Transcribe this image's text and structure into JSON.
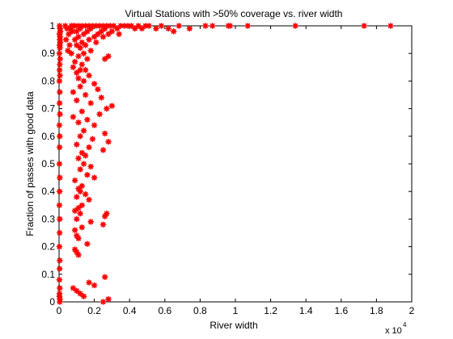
{
  "chart_data": {
    "type": "scatter",
    "title": "Virtual Stations with >50% coverage vs. river width",
    "xlabel": "River width",
    "ylabel": "Fraction of passes with good data",
    "x_multiplier_label": "x 10",
    "x_multiplier_exponent": "4",
    "x_scale": 10000,
    "xlim": [
      0,
      20000
    ],
    "ylim": [
      0,
      1
    ],
    "x_tick_values": [
      0,
      2000,
      4000,
      6000,
      8000,
      10000,
      12000,
      14000,
      16000,
      18000,
      20000
    ],
    "x_tick_labels": [
      "0",
      "0.2",
      "0.4",
      "0.6",
      "0.8",
      "1",
      "1.2",
      "1.4",
      "1.6",
      "1.8",
      "2"
    ],
    "y_tick_values": [
      0,
      0.1,
      0.2,
      0.3,
      0.4,
      0.5,
      0.6,
      0.7,
      0.8,
      0.9,
      1
    ],
    "y_tick_labels": [
      "0",
      "0.1",
      "0.2",
      "0.3",
      "0.4",
      "0.5",
      "0.6",
      "0.7",
      "0.8",
      "0.9",
      "1"
    ],
    "grid": false,
    "marker": "asterisk",
    "marker_color": "#ff0000",
    "series": [
      {
        "points": [
          [
            17300,
            1.0
          ],
          [
            18800,
            1.0
          ],
          [
            13400,
            1.0
          ],
          [
            10700,
            1.0
          ],
          [
            9700,
            1.0
          ],
          [
            9600,
            1.0
          ],
          [
            8700,
            1.0
          ],
          [
            8300,
            1.0
          ],
          [
            7400,
            0.99
          ],
          [
            6800,
            1.0
          ],
          [
            6500,
            0.98
          ],
          [
            6200,
            0.99
          ],
          [
            5800,
            1.0
          ],
          [
            5500,
            0.99
          ],
          [
            5100,
            1.0
          ],
          [
            4900,
            1.0
          ],
          [
            4700,
            0.99
          ],
          [
            4500,
            1.0
          ],
          [
            4300,
            0.99
          ],
          [
            4100,
            1.0
          ],
          [
            3900,
            1.0
          ],
          [
            3700,
            1.0
          ],
          [
            3500,
            1.0
          ],
          [
            3300,
            0.99
          ],
          [
            3100,
            1.0
          ],
          [
            2900,
            1.0
          ],
          [
            2700,
            1.0
          ],
          [
            2500,
            1.0
          ],
          [
            2300,
            1.0
          ],
          [
            2100,
            1.0
          ],
          [
            1900,
            1.0
          ],
          [
            1700,
            1.0
          ],
          [
            1500,
            1.0
          ],
          [
            1300,
            1.0
          ],
          [
            1100,
            1.0
          ],
          [
            900,
            1.0
          ],
          [
            800,
            1.0
          ],
          [
            700,
            1.0
          ],
          [
            650,
            0.99
          ],
          [
            1200,
            0.99
          ],
          [
            1800,
            0.99
          ],
          [
            2600,
            0.99
          ],
          [
            3000,
            0.98
          ],
          [
            2400,
            0.98
          ],
          [
            1600,
            0.98
          ],
          [
            1000,
            0.98
          ],
          [
            3400,
            0.97
          ],
          [
            2800,
            0.97
          ],
          [
            2200,
            0.97
          ],
          [
            1400,
            0.97
          ],
          [
            2000,
            0.96
          ],
          [
            1100,
            0.96
          ],
          [
            2500,
            0.96
          ],
          [
            1700,
            0.95
          ],
          [
            900,
            0.95
          ],
          [
            1300,
            0.94
          ],
          [
            2100,
            0.94
          ],
          [
            1500,
            0.93
          ],
          [
            1000,
            0.93
          ],
          [
            1200,
            0.92
          ],
          [
            1800,
            0.91
          ],
          [
            700,
            0.9
          ],
          [
            1400,
            0.9
          ],
          [
            1100,
            0.89
          ],
          [
            2600,
            0.88
          ],
          [
            2800,
            0.89
          ],
          [
            1600,
            0.88
          ],
          [
            900,
            0.87
          ],
          [
            1300,
            0.86
          ],
          [
            800,
            0.85
          ],
          [
            1200,
            0.84
          ],
          [
            1500,
            0.84
          ],
          [
            1000,
            0.83
          ],
          [
            1700,
            0.82
          ],
          [
            1100,
            0.81
          ],
          [
            1400,
            0.8
          ],
          [
            2000,
            0.79
          ],
          [
            1200,
            0.78
          ],
          [
            2200,
            0.77
          ],
          [
            800,
            0.76
          ],
          [
            1500,
            0.75
          ],
          [
            2400,
            0.74
          ],
          [
            1000,
            0.73
          ],
          [
            1800,
            0.72
          ],
          [
            3000,
            0.71
          ],
          [
            2700,
            0.7
          ],
          [
            1300,
            0.69
          ],
          [
            2300,
            0.68
          ],
          [
            800,
            0.67
          ],
          [
            1600,
            0.66
          ],
          [
            1100,
            0.65
          ],
          [
            2000,
            0.64
          ],
          [
            1400,
            0.62
          ],
          [
            2600,
            0.61
          ],
          [
            1200,
            0.6
          ],
          [
            1900,
            0.59
          ],
          [
            2800,
            0.58
          ],
          [
            1000,
            0.57
          ],
          [
            1700,
            0.56
          ],
          [
            2500,
            0.55
          ],
          [
            1300,
            0.54
          ],
          [
            1500,
            0.53
          ],
          [
            1100,
            0.52
          ],
          [
            1400,
            0.5
          ],
          [
            1800,
            0.49
          ],
          [
            1200,
            0.48
          ],
          [
            1600,
            0.46
          ],
          [
            2000,
            0.45
          ],
          [
            900,
            0.44
          ],
          [
            1300,
            0.42
          ],
          [
            1100,
            0.41
          ],
          [
            1200,
            0.4
          ],
          [
            1500,
            0.39
          ],
          [
            1000,
            0.38
          ],
          [
            1700,
            0.37
          ],
          [
            1300,
            0.35
          ],
          [
            1100,
            0.34
          ],
          [
            900,
            0.33
          ],
          [
            1200,
            0.32
          ],
          [
            2700,
            0.32
          ],
          [
            2600,
            0.31
          ],
          [
            1000,
            0.3
          ],
          [
            1800,
            0.29
          ],
          [
            2500,
            0.28
          ],
          [
            1300,
            0.27
          ],
          [
            900,
            0.26
          ],
          [
            1000,
            0.24
          ],
          [
            1100,
            0.23
          ],
          [
            1600,
            0.21
          ],
          [
            900,
            0.19
          ],
          [
            1000,
            0.18
          ],
          [
            1100,
            0.17
          ],
          [
            800,
            0.05
          ],
          [
            1000,
            0.04
          ],
          [
            1200,
            0.03
          ],
          [
            1700,
            0.07
          ],
          [
            2000,
            0.06
          ],
          [
            2600,
            0.09
          ],
          [
            2800,
            0.01
          ],
          [
            2500,
            0.0
          ],
          [
            1400,
            0.02
          ],
          [
            30,
            1.0
          ],
          [
            50,
            0.99
          ],
          [
            80,
            0.98
          ],
          [
            20,
            0.97
          ],
          [
            60,
            0.96
          ],
          [
            40,
            0.95
          ],
          [
            70,
            0.94
          ],
          [
            30,
            0.93
          ],
          [
            50,
            0.92
          ],
          [
            20,
            0.9
          ],
          [
            60,
            0.88
          ],
          [
            40,
            0.86
          ],
          [
            30,
            0.84
          ],
          [
            50,
            0.82
          ],
          [
            20,
            0.8
          ],
          [
            40,
            0.76
          ],
          [
            30,
            0.72
          ],
          [
            50,
            0.68
          ],
          [
            20,
            0.64
          ],
          [
            40,
            0.6
          ],
          [
            30,
            0.56
          ],
          [
            20,
            0.5
          ],
          [
            40,
            0.45
          ],
          [
            30,
            0.4
          ],
          [
            20,
            0.35
          ],
          [
            40,
            0.3
          ],
          [
            30,
            0.25
          ],
          [
            20,
            0.2
          ],
          [
            40,
            0.15
          ],
          [
            30,
            0.12
          ],
          [
            20,
            0.08
          ],
          [
            40,
            0.05
          ],
          [
            30,
            0.03
          ],
          [
            20,
            0.02
          ],
          [
            50,
            0.01
          ],
          [
            40,
            0.0
          ],
          [
            350,
            1.0
          ],
          [
            450,
            0.99
          ],
          [
            550,
            0.97
          ],
          [
            400,
            0.95
          ],
          [
            600,
            0.93
          ],
          [
            500,
            0.91
          ],
          [
            650,
            0.99
          ],
          [
            750,
            0.98
          ]
        ]
      }
    ]
  }
}
